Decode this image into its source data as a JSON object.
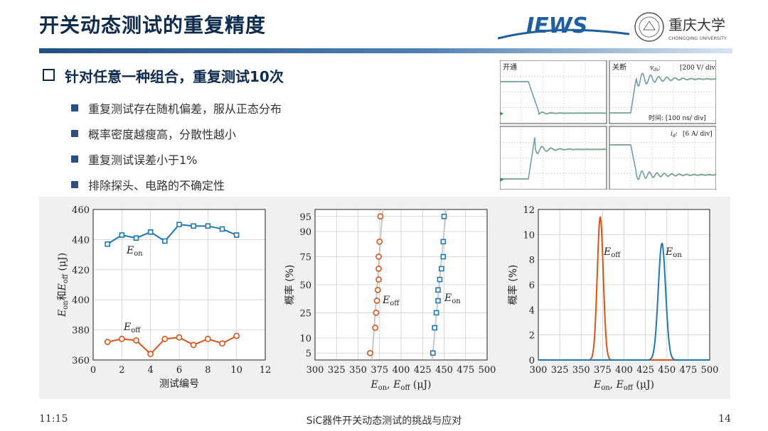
{
  "slide": {
    "title": "开关动态测试的重复精度",
    "heading": "针对任意一种组合，重复测试10次",
    "bullets": [
      "重复测试存在随机偏差，服从正态分布",
      "概率密度越瘦高，分散性越小",
      "重复测试误差小于1%",
      "排除探头、电路的不确定性"
    ]
  },
  "logos": {
    "iews": "IEWS",
    "univ_name": "重庆大学",
    "univ_en": "CHONGQING UNIVERSITY"
  },
  "waveforms": {
    "panel_tl_label": "开通",
    "panel_tr_label": "关断",
    "vds_scale": "[200 V/ div]",
    "time_scale": "时间: [100 ns/ div]",
    "id_scale": "[6 A/ div]",
    "vds_symbol": "v",
    "vds_sub": "ds",
    "id_symbol": "i",
    "id_sub": "d"
  },
  "colors": {
    "eon": "#1f77b4",
    "eoff": "#d95319",
    "accent": "#0d2a4f",
    "wave_green": "#6ab04c",
    "wave_orange": "#f0a020"
  },
  "chart_data": [
    {
      "type": "line",
      "xlabel": "测试编号",
      "ylabel": {
        "p1": "E",
        "s1": "on",
        "mid": "和",
        "p2": "E",
        "s2": "off",
        "tail": " (μJ)"
      },
      "xlim": [
        0,
        12
      ],
      "ylim": [
        360,
        460
      ],
      "xticks": [
        0,
        2,
        4,
        6,
        8,
        10,
        12
      ],
      "yticks": [
        360,
        380,
        400,
        420,
        440,
        460
      ],
      "grid": true,
      "x": [
        1,
        2,
        3,
        4,
        5,
        6,
        7,
        8,
        9,
        10
      ],
      "series": [
        {
          "name": "E",
          "sub": "on",
          "color": "#1f77b4",
          "marker": "square",
          "values": [
            437,
            443,
            441,
            445,
            439,
            450,
            449,
            449,
            447,
            443
          ]
        },
        {
          "name": "E",
          "sub": "off",
          "color": "#d95319",
          "marker": "circle",
          "values": [
            372,
            374,
            373,
            364,
            374,
            375,
            370,
            374,
            371,
            376
          ]
        }
      ]
    },
    {
      "type": "scatter",
      "xlabel": {
        "p1": "E",
        "s1": "on",
        "mid": ", ",
        "p2": "E",
        "s2": "off",
        "tail": " (μJ)"
      },
      "ylabel": "概率 (%)",
      "xlim": [
        300,
        500
      ],
      "xticks": [
        300,
        325,
        350,
        375,
        400,
        425,
        450,
        475,
        500
      ],
      "yticks": [
        5,
        10,
        25,
        50,
        75,
        90,
        95
      ],
      "grid": true,
      "series": [
        {
          "name": "E",
          "sub": "off",
          "color": "#d95319",
          "marker": "circle",
          "x": [
            364,
            370,
            371,
            372,
            373,
            374,
            374,
            374,
            375,
            376
          ],
          "p": [
            5,
            15,
            25,
            35,
            45,
            55,
            65,
            75,
            85,
            95
          ]
        },
        {
          "name": "E",
          "sub": "on",
          "color": "#1f77b4",
          "marker": "square",
          "x": [
            437,
            439,
            441,
            443,
            443,
            445,
            447,
            449,
            449,
            450
          ],
          "p": [
            5,
            15,
            25,
            35,
            45,
            55,
            65,
            75,
            85,
            95
          ]
        }
      ]
    },
    {
      "type": "line",
      "xlabel": {
        "p1": "E",
        "s1": "on",
        "mid": ", ",
        "p2": "E",
        "s2": "off",
        "tail": " (μJ)"
      },
      "ylabel": "概率 (%)",
      "xlim": [
        300,
        500
      ],
      "ylim": [
        0,
        12
      ],
      "xticks": [
        300,
        325,
        350,
        375,
        400,
        425,
        450,
        475,
        500
      ],
      "yticks": [
        0,
        2,
        4,
        6,
        8,
        10,
        12
      ],
      "grid": true,
      "series": [
        {
          "name": "E",
          "sub": "off",
          "color": "#d95319",
          "mean": 372.3,
          "peak": 11.4
        },
        {
          "name": "E",
          "sub": "on",
          "color": "#1f77b4",
          "mean": 444.3,
          "peak": 9.3
        }
      ]
    }
  ],
  "footer": {
    "time": "11:15",
    "center": "SiC器件开关动态测试的挑战与应对",
    "page": "14"
  }
}
